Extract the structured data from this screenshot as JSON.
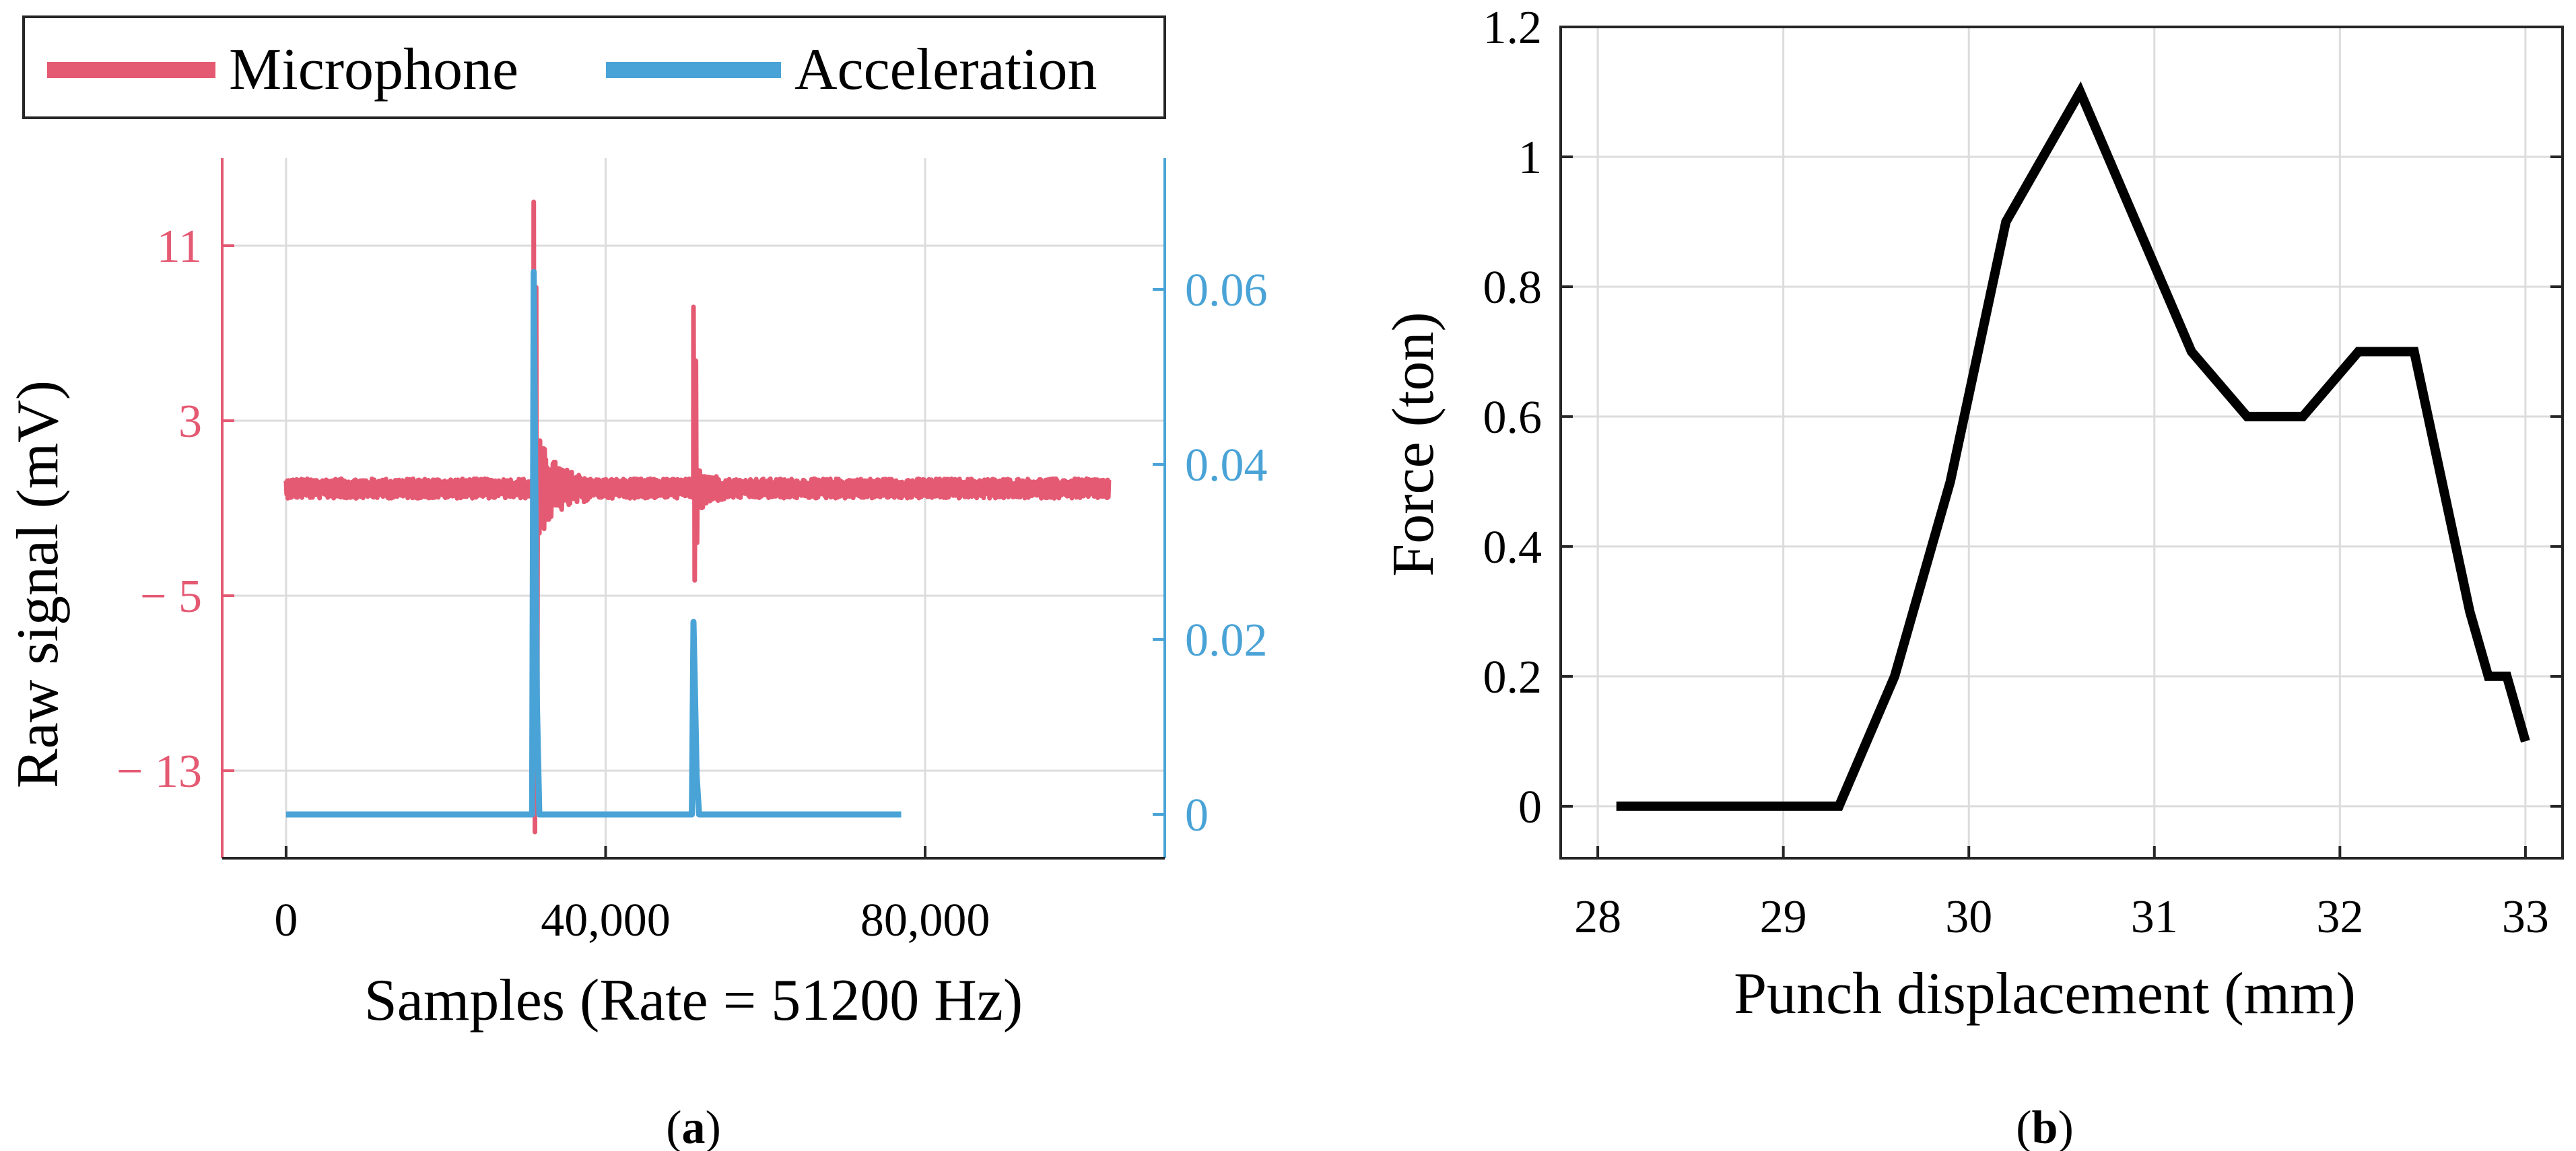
{
  "panels": {
    "a": {
      "caption_pre": "(",
      "caption_letter": "a",
      "caption_post": ")"
    },
    "b": {
      "caption_pre": "(",
      "caption_letter": "b",
      "caption_post": ")"
    }
  },
  "colors": {
    "microphone": "#e55a73",
    "acceleration": "#4aa3d6",
    "force": "#000000",
    "grid": "#dcdcdc",
    "axis": "#262626"
  },
  "chart_data": [
    {
      "id": "a",
      "type": "line",
      "title": "",
      "xlabel": "Samples (Rate = 51200 Hz)",
      "ylabel": "Raw signal (mV)",
      "xlim": [
        -8000,
        110000
      ],
      "x_ticks": [
        0,
        40000,
        80000
      ],
      "x_tick_labels": [
        "0",
        "40,000",
        "80,000"
      ],
      "grid": true,
      "legend": {
        "position": "top",
        "entries": [
          "Microphone",
          "Acceleration"
        ]
      },
      "left_axis": {
        "series": "Microphone",
        "ylim": [
          -17,
          15
        ],
        "ticks": [
          11,
          3,
          -5,
          -13
        ],
        "tick_labels": [
          "11",
          "3",
          "− 5",
          "− 13"
        ]
      },
      "right_axis": {
        "series": "Acceleration",
        "ylim": [
          -0.005,
          0.075
        ],
        "ticks": [
          0.06,
          0.04,
          0.02,
          0
        ],
        "tick_labels": [
          "0.06",
          "0.04",
          "0.02",
          "0"
        ]
      },
      "series": [
        {
          "name": "Microphone",
          "axis": "left",
          "x_range": [
            0,
            103000
          ],
          "baseline": -0.1,
          "noise_amplitude": 0.45,
          "events": [
            {
              "sample": 31000,
              "max": 13.0,
              "min": -15.8,
              "decay_samples": 7000,
              "ringing_amplitude": 2.5
            },
            {
              "sample": 51000,
              "max": 8.2,
              "min": -4.3,
              "decay_samples": 4000,
              "ringing_amplitude": 1.2
            }
          ]
        },
        {
          "name": "Acceleration",
          "axis": "right",
          "x_range": [
            0,
            77000
          ],
          "baseline": 0,
          "noise_amplitude": 0.0002,
          "events": [
            {
              "sample": 31000,
              "max": 0.062,
              "min": 0
            },
            {
              "sample": 51000,
              "max": 0.022,
              "min": 0
            }
          ]
        }
      ]
    },
    {
      "id": "b",
      "type": "line",
      "title": "",
      "xlabel": "Punch displacement (mm)",
      "ylabel": "Force (ton)",
      "xlim": [
        27.8,
        33.2
      ],
      "ylim": [
        -0.08,
        1.2
      ],
      "x_ticks": [
        28,
        29,
        30,
        31,
        32,
        33
      ],
      "x_tick_labels": [
        "28",
        "29",
        "30",
        "31",
        "32",
        "33"
      ],
      "y_ticks": [
        0,
        0.2,
        0.4,
        0.6,
        0.8,
        1,
        1.2
      ],
      "y_tick_labels": [
        "0",
        "0.2",
        "0.4",
        "0.6",
        "0.8",
        "1",
        "1.2"
      ],
      "grid": true,
      "series": [
        {
          "name": "Force",
          "x": [
            28.1,
            29.3,
            29.6,
            29.9,
            30.2,
            30.6,
            30.9,
            31.2,
            31.5,
            31.8,
            32.1,
            32.4,
            32.7,
            32.8,
            32.9,
            33.0
          ],
          "y": [
            0,
            0,
            0.2,
            0.5,
            0.9,
            1.1,
            0.9,
            0.7,
            0.6,
            0.6,
            0.7,
            0.7,
            0.3,
            0.2,
            0.2,
            0.1
          ]
        }
      ]
    }
  ]
}
